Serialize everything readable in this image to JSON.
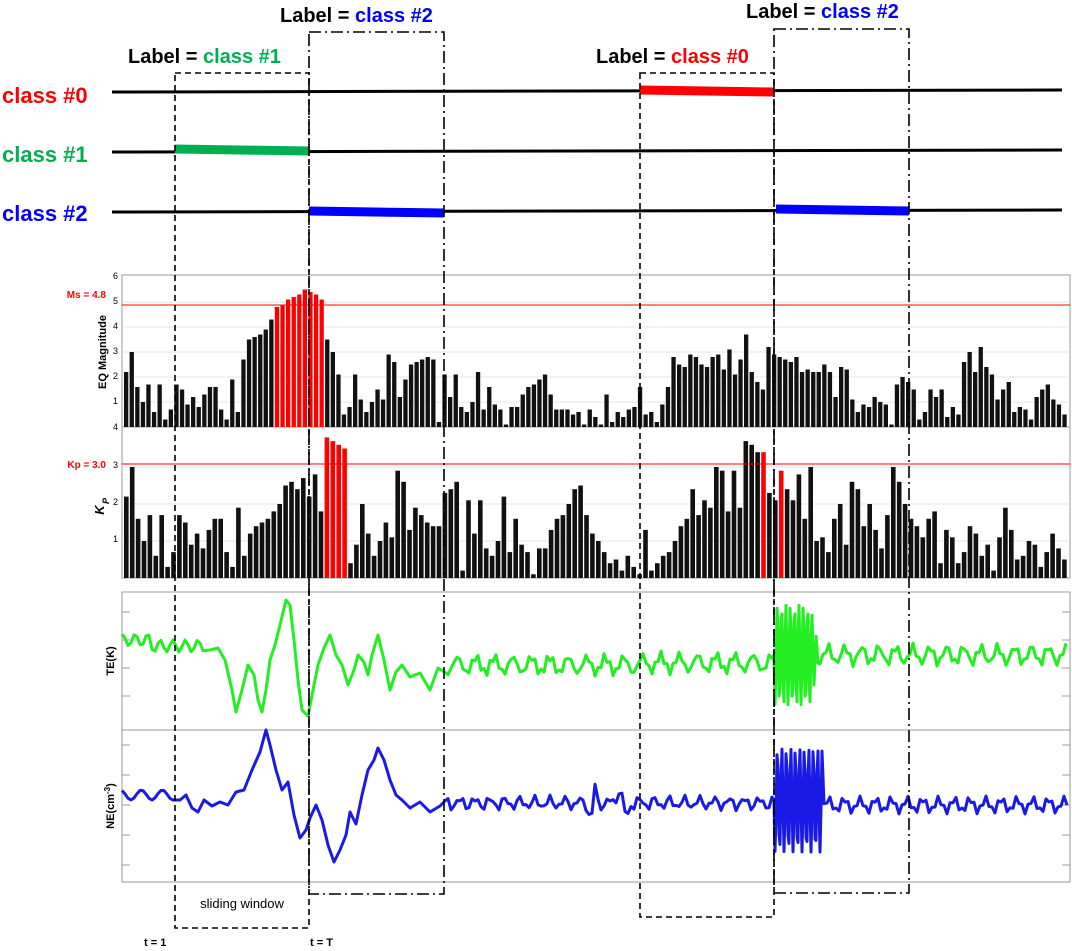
{
  "labels": {
    "prefix": "Label = ",
    "items": [
      {
        "text": "class #1",
        "color": "#00b050"
      },
      {
        "text": "class #2",
        "color": "#0000ff"
      },
      {
        "text": "class #0",
        "color": "#ff0000"
      },
      {
        "text": "class #2",
        "color": "#0000ff"
      }
    ]
  },
  "classes": [
    {
      "text": "class #0",
      "color": "#ff0000"
    },
    {
      "text": "class #1",
      "color": "#00b050"
    },
    {
      "text": "class #2",
      "color": "#0000ff"
    }
  ],
  "panels": {
    "eq": {
      "ylabel": "EQ Magnitude",
      "ticks": [
        "6",
        "5",
        "4",
        "3",
        "2",
        "1",
        "4"
      ],
      "threshold_label": "Ms = 4.8",
      "threshold": 4.8
    },
    "kp": {
      "ylabel": "K",
      "ylabel_sub": "P",
      "ticks": [
        "3",
        "2",
        "1"
      ],
      "threshold_label": "Kp = 3.0",
      "threshold": 3.0
    },
    "te": {
      "ylabel": "TE(K)"
    },
    "ne": {
      "ylabel_main": "NE(cm",
      "ylabel_sup": "-3",
      "ylabel_end": ")"
    }
  },
  "window_label": "sliding window",
  "time_labels": {
    "start": "t = 1",
    "end": "t = T"
  },
  "colors": {
    "red": "#ff0000",
    "green": "#00b050",
    "blue": "#0000ff",
    "te_line": "#22ee22",
    "ne_line": "#1a1ae6"
  },
  "chart_data": {
    "eq_magnitude": [
      2.2,
      3,
      1.6,
      1,
      1.7,
      0.6,
      1.7,
      0.3,
      0.7,
      1.7,
      1.5,
      0.9,
      1.2,
      0.8,
      1.3,
      1.6,
      1.6,
      0.7,
      0.3,
      1.9,
      0.6,
      2.7,
      3.5,
      3.6,
      3.7,
      3.9,
      4.3,
      4.8,
      4.9,
      5.1,
      5.2,
      5.3,
      5.5,
      5.4,
      5.3,
      5.1,
      3.5,
      3,
      2.1,
      0.5,
      0.8,
      2.1,
      1.1,
      0.6,
      1,
      1.5,
      1.1,
      2.9,
      2.6,
      1.2,
      1.9,
      2.5,
      2.6,
      2.7,
      2.8,
      2.7,
      0.2,
      2.1,
      1.2,
      2.1,
      0.8,
      0.6,
      1,
      2.2,
      0.7,
      1.6,
      0.9,
      0.7,
      0.1,
      0.8,
      0.8,
      1.3,
      1.6,
      1.7,
      1.9,
      2.1,
      1.3,
      0.7,
      0.7,
      0.7,
      0.5,
      0.6,
      0.1,
      0.7,
      0.4,
      0.1,
      1.3,
      0.2,
      0.6,
      0.4,
      0.7,
      0.8,
      1.6,
      0.5,
      0.6,
      0.2,
      0.9,
      1.6,
      2.8,
      2.5,
      2.4,
      2.9,
      2.8,
      2.5,
      2.4,
      2.8,
      2.9,
      2.3,
      3.1,
      2.1,
      2.7,
      3.7,
      2.2,
      1.8,
      1.5,
      3.2,
      2.9,
      2.8,
      2.7,
      2.6,
      2.8,
      2.2,
      2.3,
      2.2,
      2.2,
      2.5,
      2.2,
      1.2,
      2.4,
      2.3,
      1.1,
      0.6,
      0.9,
      0.8,
      1.2,
      1,
      0.9,
      0.1,
      1.7,
      2.0,
      1.8,
      1.5,
      0.3,
      0.6,
      1.5,
      1.2,
      1.5,
      0.4,
      0.8,
      0.5,
      2.6,
      3.0,
      2.2,
      3.2,
      2.4,
      2.1,
      1.1,
      1.5,
      1.8,
      0.6,
      0.8,
      0.7,
      0.3,
      1.2,
      1.5,
      1.7,
      1.1,
      0.9,
      0.5
    ],
    "kp_index": [
      2.2,
      3,
      1.6,
      1,
      1.7,
      0.6,
      1.7,
      0.3,
      0.7,
      1.7,
      1.5,
      0.9,
      1.2,
      0.8,
      1.3,
      1.6,
      1.6,
      0.7,
      0.3,
      1.9,
      0.6,
      1.2,
      1.4,
      1.5,
      1.6,
      1.8,
      2,
      2.5,
      2.6,
      2.4,
      2.7,
      2.2,
      2.8,
      1.8,
      3.8,
      3.7,
      3.6,
      3.5,
      0.4,
      0.9,
      2.0,
      1.2,
      0.6,
      1.0,
      1.5,
      1.1,
      2.9,
      2.6,
      1.3,
      1.9,
      1.7,
      1.5,
      1.4,
      1.4,
      2.3,
      2.4,
      2.6,
      0.2,
      2.1,
      1.2,
      2.1,
      0.8,
      0.6,
      1,
      2.2,
      0.7,
      1.6,
      0.9,
      0.7,
      0.1,
      0.8,
      0.8,
      1.3,
      1.6,
      1.7,
      2.0,
      2.4,
      2.5,
      1.7,
      1.2,
      1.0,
      0.7,
      0.4,
      0.5,
      0.2,
      0.6,
      0.3,
      0.1,
      1.3,
      0.2,
      0.4,
      0.6,
      0.7,
      1.0,
      1.4,
      1.6,
      2.4,
      1.7,
      2.1,
      1.9,
      3.0,
      2.9,
      1.8,
      2.9,
      1.9,
      3.7,
      3.6,
      3.4,
      3.4,
      2.3,
      2.1,
      2.9,
      2.4,
      2.1,
      2.8,
      1.6,
      3.0,
      1.0,
      1.1,
      0.7,
      1.6,
      2.0,
      0.9,
      2.6,
      2.4,
      1.4,
      2.0,
      1.3,
      0.8,
      1.7,
      3.0,
      2.6,
      2.0,
      1.6,
      1.4,
      1.1,
      1.6,
      1.8,
      0.4,
      1.3,
      1.1,
      0.4,
      0.7,
      1.4,
      1.2,
      0.6,
      0.9,
      0.2,
      1.1,
      1.9,
      1.3,
      0.5,
      0.6,
      1.0,
      0.9,
      0.3,
      0.7,
      1.2,
      0.8,
      0.5
    ]
  }
}
